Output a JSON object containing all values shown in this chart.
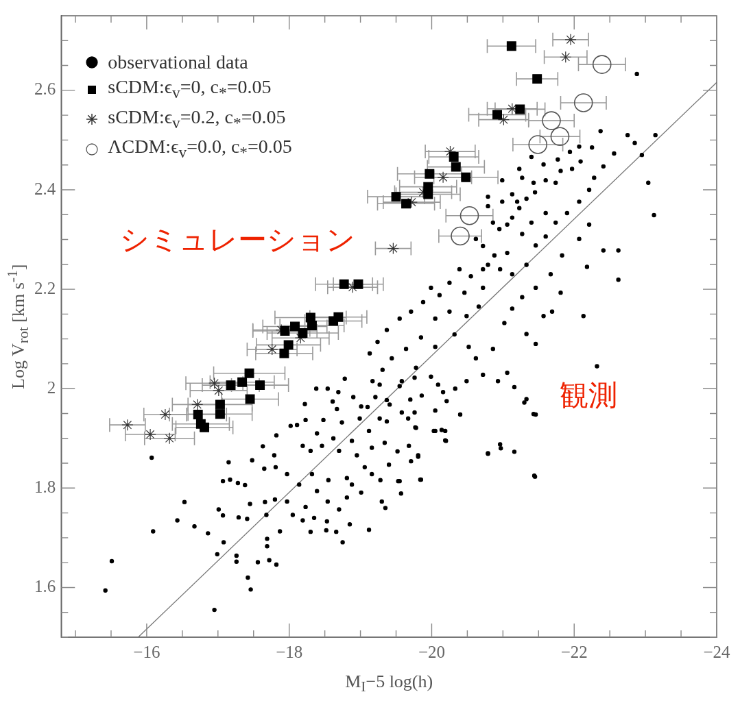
{
  "chart_data": {
    "type": "scatter",
    "xlabel": "M$_{I}$−5 log(h)",
    "ylabel": "Log V$_{rot}$ [km s$^{-1}$]",
    "xlim": [
      -14.8,
      -24
    ],
    "ylim": [
      1.5,
      2.75
    ],
    "xticks": [
      {
        "value": -15,
        "label": null
      },
      {
        "value": -15.5,
        "label": null
      },
      {
        "value": -16,
        "label": "−16"
      },
      {
        "value": -16.5,
        "label": null
      },
      {
        "value": -17,
        "label": null
      },
      {
        "value": -17.5,
        "label": null
      },
      {
        "value": -18,
        "label": "−18"
      },
      {
        "value": -18.5,
        "label": null
      },
      {
        "value": -19,
        "label": null
      },
      {
        "value": -19.5,
        "label": null
      },
      {
        "value": -20,
        "label": "−20"
      },
      {
        "value": -20.5,
        "label": null
      },
      {
        "value": -21,
        "label": null
      },
      {
        "value": -21.5,
        "label": null
      },
      {
        "value": -22,
        "label": "−22"
      },
      {
        "value": -22.5,
        "label": null
      },
      {
        "value": -23,
        "label": null
      },
      {
        "value": -23.5,
        "label": null
      },
      {
        "value": -24,
        "label": "−24"
      }
    ],
    "yticks": [
      {
        "value": 1.5,
        "label": null
      },
      {
        "value": 1.55,
        "label": null
      },
      1.6,
      {
        "value": 1.65,
        "label": null
      },
      {
        "value": 1.7,
        "label": null
      },
      {
        "value": 1.75,
        "label": null
      },
      1.8,
      {
        "value": 1.85,
        "label": null
      },
      {
        "value": 1.9,
        "label": null
      },
      {
        "value": 1.95,
        "label": null
      },
      2,
      {
        "value": 2.05,
        "label": null
      },
      {
        "value": 2.1,
        "label": null
      },
      {
        "value": 2.15,
        "label": null
      },
      2.2,
      {
        "value": 2.25,
        "label": null
      },
      {
        "value": 2.3,
        "label": null
      },
      {
        "value": 2.35,
        "label": null
      },
      2.4,
      {
        "value": 2.45,
        "label": null
      },
      {
        "value": 2.5,
        "label": null
      },
      {
        "value": 2.55,
        "label": null
      },
      2.6,
      {
        "value": 2.65,
        "label": null
      },
      {
        "value": 2.7,
        "label": null
      }
    ],
    "grid": false,
    "legend": "top left",
    "annotations": [
      "シミュレーション",
      "観測"
    ],
    "series": [
      {
        "name": "observational data",
        "color": "#000000",
        "marker": "circle",
        "x": [
          -15.42,
          -15.51,
          -16.07,
          -16.09,
          -16.95,
          -16.53,
          -16.43,
          -16.67,
          -16.86,
          -17.01,
          -17.07,
          -17.08,
          -16.99,
          -17.26,
          -17.26,
          -17.42,
          -17.46,
          -17.56,
          -17.72,
          -17.82,
          -17.69,
          -17.69,
          -17.87,
          -17.41,
          -17.29,
          -17.45,
          -17.66,
          -17.68,
          -17.8,
          -17.97,
          -18.05,
          -18.19,
          -18.35,
          -18.3,
          -18.52,
          -18.53,
          -18.66,
          -18.75,
          -18.85,
          -19.12,
          -18.7,
          -18.81,
          -18.54,
          -18.23,
          -18.39,
          -18.88,
          -19.01,
          -19.3,
          -19.35,
          -19.57,
          -19.53,
          -19.84,
          -19.81,
          -19.71,
          -19.4,
          -19.28,
          -19.16,
          -19.06,
          -18.81,
          -18.55,
          -18.32,
          -18.14,
          -17.97,
          -17.81,
          -17.65,
          -17.48,
          -17.15,
          -17.07,
          -17.17,
          -17.28,
          -17.38,
          -17.63,
          -17.79,
          -17.82,
          -18.02,
          -18.11,
          -18.23,
          -18.39,
          -18.19,
          -18.3,
          -18.46,
          -18.62,
          -18.7,
          -18.88,
          -18.95,
          -19.16,
          -19.12,
          -19.34,
          -19.52,
          -19.68,
          -19.67,
          -19.77,
          -20.03,
          -20.14,
          -20.19,
          -20.05,
          -19.76,
          -19.58,
          -19.37,
          -18.99,
          -18.74,
          -18.67,
          -18.61,
          -18.48,
          -18.22,
          -18.38,
          -18.54,
          -18.69,
          -18.78,
          -18.9,
          -19.01,
          -19.21,
          -19.27,
          -19.41,
          -19.58,
          -19.76,
          -20.16,
          -20.09,
          -20.21,
          -19.86,
          -19.7,
          -21.44,
          -20.79,
          -20.97,
          -21.43,
          -21.33,
          -22.32,
          -22.37,
          -23.14,
          -23.04,
          -23.12,
          -22.95,
          -22.75,
          -22.85,
          -22.56,
          -22.41,
          -22.28,
          -22.09,
          -22.25,
          -21.97,
          -21.81,
          -21.74,
          -21.6,
          -21.45,
          -21.33,
          -21.23,
          -21.13,
          -21.06,
          -20.95,
          -20.86,
          -20.79,
          -20.62,
          -20.72,
          -20.88,
          -20.79,
          -20.96,
          -21.13,
          -21.33,
          -21.46,
          -21.6,
          -21.74,
          -21.9,
          -22.07,
          -22.21,
          -22.21,
          -22.07,
          -21.83,
          -21.67,
          -21.46,
          -21.27,
          -21.13,
          -21.02,
          -21.57,
          -21.69,
          -21.81,
          -22.13,
          -22.62,
          -22.62,
          -22.41,
          -22.18,
          -21.46,
          -21.33,
          -21.3,
          -21.46,
          -21.16,
          -20.93,
          -20.72,
          -21.06,
          -20.62,
          -20.86,
          -20.49,
          -20.33,
          -20.4,
          -20.2,
          -20.05,
          -20.19,
          -19.78,
          -19.81,
          -19.55,
          -19.85,
          -20.79,
          -21.16,
          -21.45,
          -20.96,
          -20.72,
          -20.55,
          -20.39,
          -20.46,
          -20.25,
          -20.11,
          -19.99,
          -19.88,
          -19.71,
          -19.55,
          -19.37,
          -19.24,
          -19.13,
          -20.05,
          -20.25,
          -20.49,
          -20.66,
          -20.32,
          -20.05,
          -19.85,
          -19.64,
          -19.44,
          -19.31,
          -19.17,
          -19.78,
          -19.99,
          -19.55,
          -19.37,
          -19.27,
          -19.1,
          -20.52,
          -20.72,
          -21.06,
          -21.27,
          -21.4,
          -21.6,
          -21.13,
          -20.99,
          -21.27,
          -21.43,
          -21.57,
          -21.77,
          -21.94,
          -22.07,
          -20.99,
          -21.23,
          -21.4,
          -20.79,
          -21.2,
          -22.88
        ],
        "values": [
          1.594,
          1.653,
          1.861,
          1.713,
          1.555,
          1.772,
          1.735,
          1.723,
          1.709,
          1.757,
          1.745,
          1.691,
          1.667,
          1.664,
          1.652,
          1.62,
          1.596,
          1.651,
          1.655,
          1.646,
          1.683,
          1.698,
          1.713,
          1.738,
          1.741,
          1.768,
          1.772,
          1.746,
          1.777,
          1.773,
          1.746,
          1.735,
          1.74,
          1.712,
          1.715,
          1.733,
          1.712,
          1.691,
          1.727,
          1.716,
          1.757,
          1.781,
          1.773,
          1.762,
          1.794,
          1.807,
          1.791,
          1.773,
          1.76,
          1.789,
          1.814,
          1.817,
          1.866,
          1.854,
          1.847,
          1.816,
          1.828,
          1.842,
          1.82,
          1.816,
          1.828,
          1.807,
          1.828,
          1.842,
          1.839,
          1.856,
          1.852,
          1.814,
          1.817,
          1.81,
          1.806,
          1.884,
          1.866,
          1.906,
          1.925,
          1.927,
          1.937,
          1.91,
          1.885,
          1.875,
          1.885,
          1.9,
          1.875,
          1.895,
          1.866,
          1.881,
          1.915,
          1.891,
          1.874,
          1.885,
          1.94,
          1.922,
          1.915,
          1.917,
          1.896,
          1.956,
          1.952,
          1.952,
          1.934,
          1.94,
          1.932,
          1.959,
          1.974,
          1.937,
          1.969,
          2.0,
          2.0,
          1.993,
          2.02,
          1.983,
          1.964,
          1.983,
          2.008,
          1.968,
          2.015,
          2.022,
          1.993,
          2.008,
          1.975,
          1.986,
          1.978,
          1.825,
          1.87,
          1.88,
          1.949,
          1.979,
          2.045,
          2.518,
          2.51,
          2.414,
          2.349,
          2.47,
          2.51,
          2.494,
          2.473,
          2.447,
          2.424,
          2.457,
          2.485,
          2.442,
          2.438,
          2.414,
          2.419,
          2.395,
          2.382,
          2.363,
          2.344,
          2.33,
          2.321,
          2.334,
          2.367,
          2.301,
          2.287,
          2.268,
          2.249,
          2.24,
          2.23,
          2.249,
          2.288,
          2.306,
          2.334,
          2.353,
          2.376,
          2.4,
          2.33,
          2.301,
          2.268,
          2.23,
          2.203,
          2.184,
          2.161,
          2.132,
          2.146,
          2.155,
          2.193,
          2.146,
          2.278,
          2.219,
          2.278,
          2.245,
          2.09,
          2.11,
          1.972,
          1.948,
          2.003,
          2.015,
          2.028,
          2.032,
          2.061,
          2.08,
          2.015,
          2.0,
          1.948,
          1.895,
          1.915,
          1.915,
          1.921,
          1.863,
          1.814,
          1.817,
          1.869,
          1.873,
          1.823,
          1.888,
          2.203,
          2.226,
          2.24,
          2.193,
          2.213,
          2.188,
          2.203,
          2.174,
          2.155,
          2.141,
          2.118,
          2.094,
          2.071,
          2.141,
          2.155,
          2.146,
          2.165,
          2.109,
          2.084,
          2.103,
          2.08,
          2.061,
          2.038,
          2.015,
          2.042,
          2.024,
          2.005,
          1.977,
          1.94,
          1.963,
          2.084,
          2.24,
          2.273,
          2.311,
          2.334,
          2.353,
          2.391,
          2.376,
          2.424,
          2.414,
          2.451,
          2.461,
          2.476,
          2.487,
          2.419,
          2.442,
          2.466,
          2.386,
          2.376,
          2.633
        ]
      },
      {
        "name": "sCDM:ϵ$_{v}$=0, c$_{*}$=0.05",
        "color": "#000000",
        "marker": "square",
        "x": [
          -21.12,
          -21.48,
          -20.92,
          -21.24,
          -20.31,
          -20.34,
          -20.48,
          -19.97,
          -19.95,
          -19.95,
          -19.5,
          -19.64,
          -18.77,
          -18.97,
          -18.69,
          -18.62,
          -18.3,
          -18.32,
          -18.08,
          -17.94,
          -18.19,
          -17.99,
          -17.93,
          -17.44,
          -17.34,
          -17.18,
          -17.59,
          -17.45,
          -17.03,
          -17.03,
          -16.72,
          -16.76,
          -16.81
        ],
        "values": [
          2.689,
          2.623,
          2.551,
          2.562,
          2.466,
          2.446,
          2.425,
          2.432,
          2.406,
          2.391,
          2.386,
          2.372,
          2.21,
          2.21,
          2.144,
          2.136,
          2.143,
          2.127,
          2.125,
          2.116,
          2.112,
          2.088,
          2.071,
          2.031,
          2.013,
          2.007,
          2.007,
          1.979,
          1.968,
          1.949,
          1.948,
          1.929,
          1.922
        ],
        "xerrors": [
          0.34,
          0.29,
          0.4,
          0.35,
          0.35,
          0.4,
          0.45,
          0.45,
          0.4,
          0.45,
          0.4,
          0.4,
          0.4,
          0.35,
          0.4,
          0.4,
          0.5,
          0.45,
          0.45,
          0.45,
          0.5,
          0.45,
          0.4,
          0.5,
          0.45,
          0.4,
          0.4,
          0.4,
          0.45,
          0.45,
          0.4,
          0.4,
          0.4
        ]
      },
      {
        "name": "sCDM:ϵ$_{v}$=0.2, c$_{*}$=0.05",
        "color": "#333333",
        "marker": "cross",
        "x": [
          -21.95,
          -21.88,
          -21.13,
          -21.01,
          -19.46,
          -20.16,
          -20.26,
          -19.88,
          -19.72,
          -18.89,
          -16.95,
          -17.01,
          -16.71,
          -16.26,
          -15.73,
          -16.05,
          -16.32,
          -17.76,
          -17.89,
          -18.16
        ],
        "values": [
          2.702,
          2.667,
          2.563,
          2.541,
          2.282,
          2.425,
          2.477,
          2.395,
          2.375,
          2.204,
          2.011,
          1.996,
          1.968,
          1.948,
          1.927,
          1.908,
          1.9,
          2.079,
          2.118,
          2.102
        ],
        "xerrors": [
          0.25,
          0.3,
          0.35,
          0.35,
          0.25,
          0.4,
          0.35,
          0.4,
          0.4,
          0.35,
          0.4,
          0.4,
          0.35,
          0.3,
          0.25,
          0.35,
          0.35,
          0.35,
          0.4,
          0.4
        ]
      },
      {
        "name": "ΛCDM:ϵ$_{v}$=0.0, c$_{*}$=0.05",
        "color": "#555555",
        "marker": "circle",
        "x": [
          -22.39,
          -22.13,
          -21.68,
          -21.8,
          -21.49,
          -20.53,
          -20.4
        ],
        "values": [
          2.652,
          2.575,
          2.539,
          2.507,
          2.491,
          2.348,
          2.307
        ],
        "xerrors": [
          0.33,
          0.32,
          0.32,
          0.28,
          0.35,
          0.33,
          0.3
        ]
      },
      {
        "type": "line",
        "color": "#777777",
        "marker": "none",
        "x": [
          -15.88,
          -24
        ],
        "values": [
          1.5,
          2.616
        ]
      }
    ]
  }
}
